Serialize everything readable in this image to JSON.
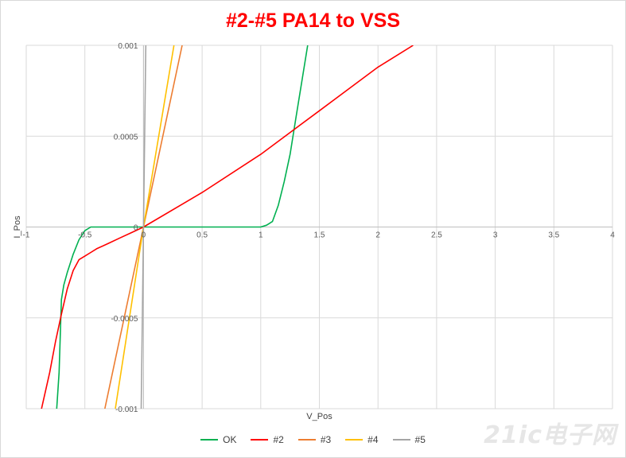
{
  "chart_data": {
    "type": "line",
    "title": "#2-#5 PA14 to VSS",
    "xlabel": "V_Pos",
    "ylabel": "I_Pos",
    "xlim": [
      -1,
      4
    ],
    "ylim": [
      -0.001,
      0.001
    ],
    "x_ticks": [
      "-1",
      "-0.5",
      "0",
      "0.5",
      "1",
      "1.5",
      "2",
      "2.5",
      "3",
      "3.5",
      "4"
    ],
    "y_ticks": [
      "-0.001",
      "-0.0005",
      "0",
      "0.0005",
      "0.001"
    ],
    "grid": true,
    "legend_position": "bottom",
    "series": [
      {
        "name": "OK",
        "color": "#00b050",
        "x": [
          -0.74,
          -0.72,
          -0.7,
          -0.68,
          -0.65,
          -0.6,
          -0.55,
          -0.5,
          -0.45,
          -0.4,
          -0.3,
          -0.2,
          0.0,
          0.5,
          1.0,
          1.05,
          1.1,
          1.15,
          1.2,
          1.25,
          1.3,
          1.35,
          1.4
        ],
        "y": [
          -0.001,
          -0.0008,
          -0.0004,
          -0.00032,
          -0.00025,
          -0.00015,
          -7e-05,
          -2e-05,
          0.0,
          0.0,
          0.0,
          0.0,
          0.0,
          0.0,
          0.0,
          1e-05,
          3e-05,
          0.00012,
          0.00025,
          0.0004,
          0.0006,
          0.0008,
          0.001
        ]
      },
      {
        "name": "#2",
        "color": "#ff0000",
        "x": [
          -0.87,
          -0.8,
          -0.75,
          -0.7,
          -0.65,
          -0.6,
          -0.55,
          -0.5,
          -0.45,
          -0.4,
          -0.3,
          -0.2,
          -0.1,
          0.0,
          0.5,
          1.0,
          1.5,
          2.0,
          2.3
        ],
        "y": [
          -0.001,
          -0.0008,
          -0.00063,
          -0.00048,
          -0.00034,
          -0.00024,
          -0.00018,
          -0.00016,
          -0.00014,
          -0.00012,
          -9e-05,
          -6e-05,
          -3e-05,
          0.0,
          0.00019,
          0.0004,
          0.00064,
          0.00088,
          0.001
        ]
      },
      {
        "name": "#3",
        "color": "#ed7d31",
        "x": [
          -0.33,
          0.0,
          0.33
        ],
        "y": [
          -0.001,
          0.0,
          0.001
        ]
      },
      {
        "name": "#4",
        "color": "#ffc000",
        "x": [
          -0.24,
          0.0,
          0.26
        ],
        "y": [
          -0.001,
          0.0,
          0.001
        ]
      },
      {
        "name": "#5",
        "color": "#a5a5a5",
        "x": [
          -0.02,
          0.0,
          0.02
        ],
        "y": [
          -0.001,
          0.0,
          0.001
        ]
      }
    ]
  },
  "watermark": "21ic电子网"
}
